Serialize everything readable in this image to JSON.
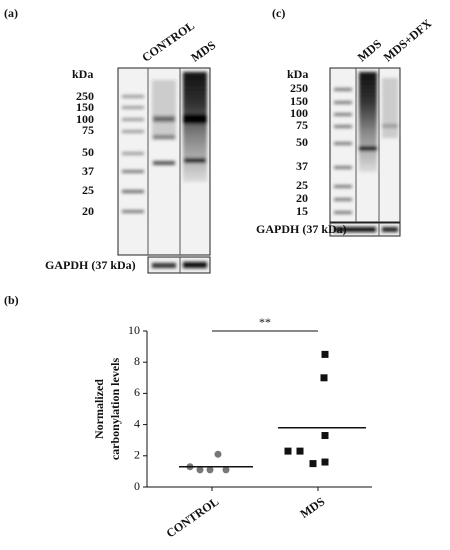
{
  "panel_a": {
    "label": "(a)",
    "lanes": [
      "CONTROL",
      "MDS"
    ],
    "unit": "kDa",
    "ladder": [
      "250",
      "150",
      "100",
      "75",
      "50",
      "37",
      "25",
      "20"
    ],
    "loading_control": "GAPDH (37 kDa)"
  },
  "panel_c": {
    "label": "(c)",
    "lanes": [
      "MDS",
      "MDS+DFX"
    ],
    "unit": "kDa",
    "ladder": [
      "250",
      "150",
      "100",
      "75",
      "50",
      "37",
      "25",
      "20",
      "15"
    ],
    "loading_control": "GAPDH (37 kDa)"
  },
  "chart_data": {
    "type": "scatter",
    "panel_label": "(b)",
    "y_label": [
      "Normalized",
      "carbonylation levels"
    ],
    "categories": [
      "CONTROL",
      "MDS"
    ],
    "points": [
      [
        1.3,
        1.1,
        1.1,
        2.1,
        1.1
      ],
      [
        8.5,
        7.0,
        3.3,
        2.3,
        2.3,
        1.6,
        1.5
      ]
    ],
    "means": [
      1.3,
      3.8
    ],
    "markers": [
      "circle",
      "square"
    ],
    "colors": [
      "#777777",
      "#111111"
    ],
    "significance": {
      "text": "**",
      "y": 10.0
    },
    "ylim": [
      0,
      10
    ],
    "yticks": [
      0,
      2,
      4,
      6,
      8,
      10
    ]
  }
}
